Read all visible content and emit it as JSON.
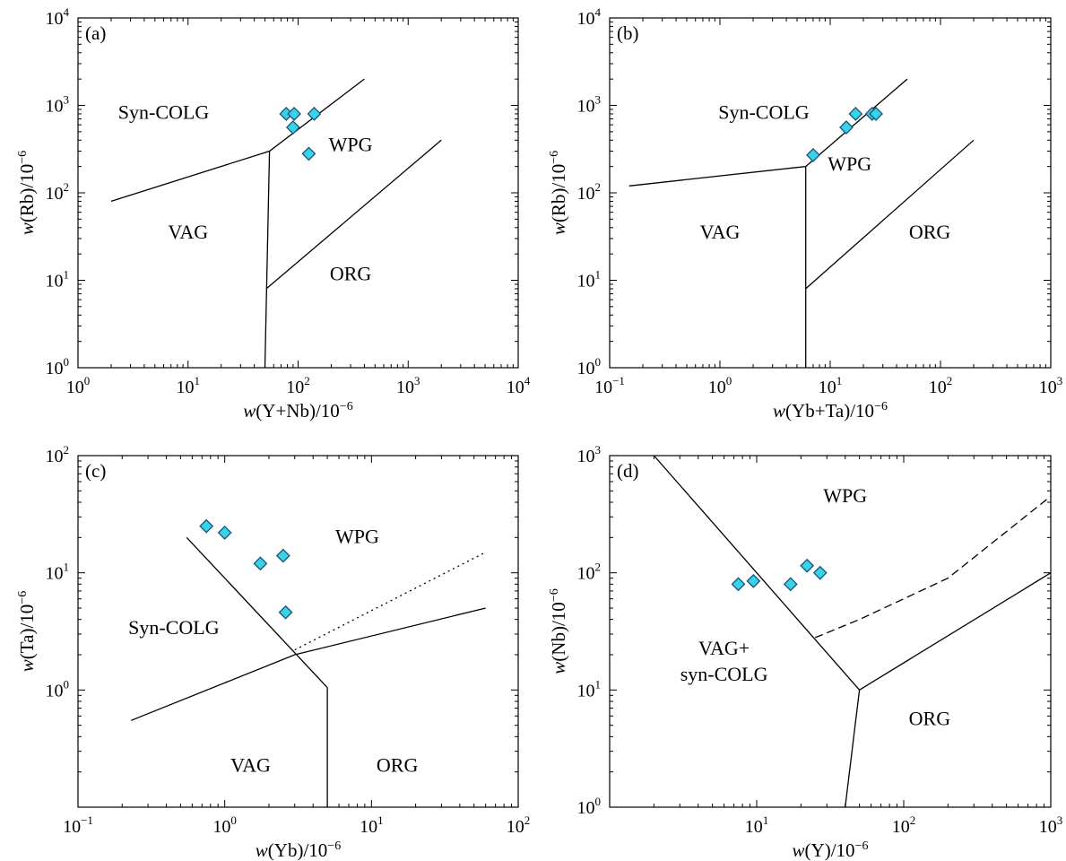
{
  "chart_data": [
    {
      "type": "scatter",
      "panel_label": "(a)",
      "xlabel": "w(Y+Nb)/10^-6",
      "ylabel": "w(Rb)/10^-6",
      "xscale": "log",
      "yscale": "log",
      "xlim": [
        1,
        10000
      ],
      "ylim": [
        1,
        10000
      ],
      "xticks": [
        {
          "base": "10",
          "exp": "0"
        },
        {
          "base": "10",
          "exp": "1"
        },
        {
          "base": "10",
          "exp": "2"
        },
        {
          "base": "10",
          "exp": "3"
        },
        {
          "base": "10",
          "exp": "4"
        }
      ],
      "yticks": [
        {
          "base": "10",
          "exp": "0"
        },
        {
          "base": "10",
          "exp": "1"
        },
        {
          "base": "10",
          "exp": "2"
        },
        {
          "base": "10",
          "exp": "3"
        },
        {
          "base": "10",
          "exp": "4"
        }
      ],
      "boundaries": [
        {
          "style": "solid",
          "points": [
            [
              2,
              80
            ],
            [
              55,
              300
            ],
            [
              400,
              2000
            ]
          ]
        },
        {
          "style": "solid",
          "points": [
            [
              50,
              1
            ],
            [
              55,
              300
            ]
          ]
        },
        {
          "style": "solid",
          "points": [
            [
              51.5,
              8
            ],
            [
              2000,
              400
            ]
          ]
        }
      ],
      "regions": [
        {
          "text": "Syn-COLG",
          "at": [
            6,
            700
          ]
        },
        {
          "text": "WPG",
          "at": [
            300,
            300
          ]
        },
        {
          "text": "VAG",
          "at": [
            10,
            30
          ]
        },
        {
          "text": "ORG",
          "at": [
            300,
            10
          ]
        }
      ],
      "points": [
        [
          78,
          800
        ],
        [
          92,
          800
        ],
        [
          140,
          800
        ],
        [
          90,
          560
        ],
        [
          125,
          280
        ]
      ]
    },
    {
      "type": "scatter",
      "panel_label": "(b)",
      "xlabel": "w(Yb+Ta)/10^-6",
      "ylabel": "w(Rb)/10^-6",
      "xscale": "log",
      "yscale": "log",
      "xlim": [
        0.1,
        1000
      ],
      "ylim": [
        1,
        10000
      ],
      "xticks": [
        {
          "base": "10",
          "exp": "−1"
        },
        {
          "base": "10",
          "exp": "0"
        },
        {
          "base": "10",
          "exp": "1"
        },
        {
          "base": "10",
          "exp": "2"
        },
        {
          "base": "10",
          "exp": "3"
        }
      ],
      "yticks": [
        {
          "base": "10",
          "exp": "0"
        },
        {
          "base": "10",
          "exp": "1"
        },
        {
          "base": "10",
          "exp": "2"
        },
        {
          "base": "10",
          "exp": "3"
        },
        {
          "base": "10",
          "exp": "4"
        }
      ],
      "boundaries": [
        {
          "style": "solid",
          "points": [
            [
              0.15,
              120
            ],
            [
              6,
              200
            ],
            [
              50,
              2000
            ]
          ]
        },
        {
          "style": "solid",
          "points": [
            [
              6,
              1
            ],
            [
              6,
              200
            ]
          ]
        },
        {
          "style": "solid",
          "points": [
            [
              6,
              8
            ],
            [
              200,
              400
            ]
          ]
        }
      ],
      "regions": [
        {
          "text": "Syn-COLG",
          "at": [
            2.5,
            700
          ]
        },
        {
          "text": "WPG",
          "at": [
            15,
            180
          ]
        },
        {
          "text": "VAG",
          "at": [
            1.0,
            30
          ]
        },
        {
          "text": "ORG",
          "at": [
            80,
            30
          ]
        }
      ],
      "points": [
        [
          7,
          270
        ],
        [
          14,
          560
        ],
        [
          17,
          800
        ],
        [
          24,
          800
        ],
        [
          26,
          800
        ]
      ]
    },
    {
      "type": "scatter",
      "panel_label": "(c)",
      "xlabel": "w(Yb)/10^-6",
      "ylabel": "w(Ta)/10^-6",
      "xscale": "log",
      "yscale": "log",
      "xlim": [
        0.1,
        100
      ],
      "ylim": [
        0.1,
        100
      ],
      "xticks": [
        {
          "base": "10",
          "exp": "−1"
        },
        {
          "base": "10",
          "exp": "0"
        },
        {
          "base": "10",
          "exp": "1"
        },
        {
          "base": "10",
          "exp": "2"
        }
      ],
      "yticks": [
        {
          "base": "10",
          "exp": "0"
        },
        {
          "base": "10",
          "exp": "1"
        },
        {
          "base": "10",
          "exp": "2"
        }
      ],
      "boundaries": [
        {
          "style": "solid",
          "points": [
            [
              0.23,
              0.55
            ],
            [
              3,
              2
            ],
            [
              60,
              5
            ]
          ]
        },
        {
          "style": "solid",
          "points": [
            [
              0.55,
              20
            ],
            [
              5,
              1.05
            ]
          ]
        },
        {
          "style": "solid",
          "points": [
            [
              5,
              0.1
            ],
            [
              5,
              1.05
            ]
          ]
        },
        {
          "style": "dotted",
          "points": [
            [
              3,
              2.2
            ],
            [
              60,
              15
            ]
          ]
        }
      ],
      "regions": [
        {
          "text": "Syn-COLG",
          "at": [
            0.45,
            3
          ]
        },
        {
          "text": "WPG",
          "at": [
            8,
            18
          ]
        },
        {
          "text": "VAG",
          "at": [
            1.5,
            0.2
          ]
        },
        {
          "text": "ORG",
          "at": [
            15,
            0.2
          ]
        }
      ],
      "points": [
        [
          0.75,
          25
        ],
        [
          1.0,
          22
        ],
        [
          1.75,
          12
        ],
        [
          2.5,
          14
        ],
        [
          2.6,
          4.6
        ]
      ]
    },
    {
      "type": "scatter",
      "panel_label": "(d)",
      "xlabel": "w(Y)/10^-6",
      "ylabel": "w(Nb)/10^-6",
      "xscale": "log",
      "yscale": "log",
      "xlim": [
        1,
        1000
      ],
      "ylim": [
        1,
        1000
      ],
      "xticks": [
        {
          "base": "10",
          "exp": "1"
        },
        {
          "base": "10",
          "exp": "2"
        },
        {
          "base": "10",
          "exp": "3"
        }
      ],
      "yticks": [
        {
          "base": "10",
          "exp": "0"
        },
        {
          "base": "10",
          "exp": "1"
        },
        {
          "base": "10",
          "exp": "2"
        },
        {
          "base": "10",
          "exp": "3"
        }
      ],
      "boundaries": [
        {
          "style": "solid",
          "points": [
            [
              2,
              1000
            ],
            [
              50,
              10
            ]
          ]
        },
        {
          "style": "solid",
          "points": [
            [
              40,
              1
            ],
            [
              50,
              10
            ],
            [
              1000,
              100
            ]
          ]
        },
        {
          "style": "dashed",
          "points": [
            [
              25,
              28
            ],
            [
              50,
              40
            ],
            [
              200,
              90
            ],
            [
              1000,
              450
            ]
          ]
        }
      ],
      "regions": [
        {
          "text": "WPG",
          "at": [
            40,
            400
          ]
        },
        {
          "text": "VAG+",
          "at": [
            6,
            20
          ]
        },
        {
          "text": "syn-COLG",
          "at": [
            6,
            12
          ]
        },
        {
          "text": "ORG",
          "at": [
            150,
            5
          ]
        }
      ],
      "points": [
        [
          7.5,
          80
        ],
        [
          9.5,
          85
        ],
        [
          17,
          80
        ],
        [
          22,
          115
        ],
        [
          27,
          100
        ]
      ]
    }
  ]
}
